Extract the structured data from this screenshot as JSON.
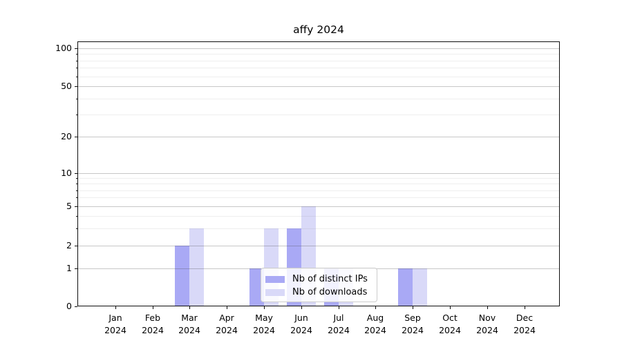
{
  "chart_data": {
    "type": "bar",
    "title": "affy 2024",
    "categories": [
      "Jan",
      "Feb",
      "Mar",
      "Apr",
      "May",
      "Jun",
      "Jul",
      "Aug",
      "Sep",
      "Oct",
      "Nov",
      "Dec"
    ],
    "category_year": "2024",
    "series": [
      {
        "name": "Nb of distinct IPs",
        "color": "#a9a9f5",
        "values": [
          0,
          0,
          2,
          0,
          1,
          3,
          1,
          0,
          1,
          0,
          0,
          0
        ]
      },
      {
        "name": "Nb of downloads",
        "color": "#d9d9f8",
        "values": [
          0,
          0,
          3,
          0,
          3,
          5,
          1,
          0,
          1,
          0,
          0,
          0
        ]
      }
    ],
    "yaxis": {
      "scale": "symlog",
      "ticks": [
        0,
        1,
        2,
        5,
        10,
        20,
        50,
        100
      ],
      "tick_labels": [
        "0",
        "1",
        "2",
        "5",
        "10",
        "20",
        "50",
        "100"
      ],
      "minor_ticks": [
        3,
        4,
        6,
        7,
        8,
        9,
        30,
        40,
        60,
        70,
        80,
        90
      ],
      "range": [
        0,
        120
      ]
    },
    "xlabel": "",
    "ylabel": "",
    "grid": true,
    "legend": {
      "position": "bottom-center",
      "entries": [
        "Nb of distinct IPs",
        "Nb of downloads"
      ]
    },
    "colors": {
      "distinct_ips": "#a9a9f5",
      "downloads": "#d9d9f8",
      "grid_major": "#c9c9c9",
      "grid_minor": "#ebebeb",
      "axis": "#0d0d0d",
      "background": "#ffffff"
    }
  }
}
